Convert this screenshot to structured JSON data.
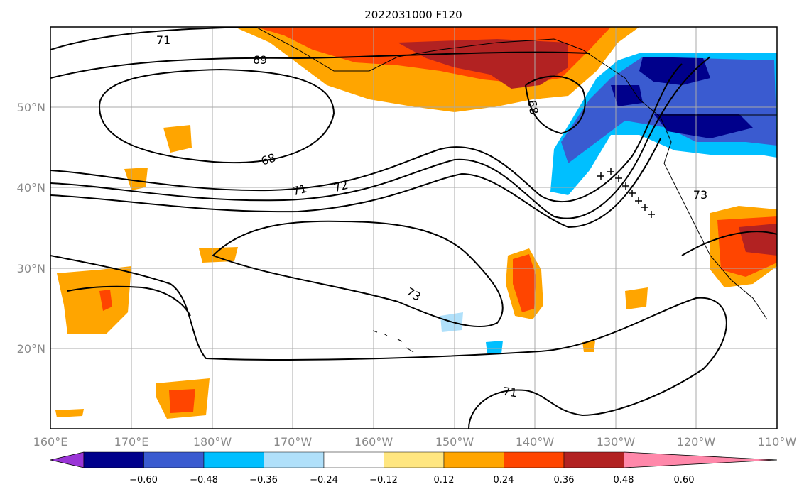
{
  "title": "2022031000 F120",
  "map": {
    "lon_ticks": [
      "160°E",
      "170°E",
      "180°W",
      "170°W",
      "160°W",
      "150°W",
      "140°W",
      "130°W",
      "120°W",
      "110°W"
    ],
    "lat_ticks": [
      "50°N",
      "40°N",
      "30°N",
      "20°N"
    ],
    "contour_labels": [
      "71",
      "69",
      "68",
      "68",
      "71",
      "72",
      "73",
      "73",
      "71"
    ],
    "gridlines": true
  },
  "colorbar": {
    "ticks": [
      "−0.60",
      "−0.48",
      "−0.36",
      "−0.24",
      "−0.12",
      "0.12",
      "0.24",
      "0.36",
      "0.48",
      "0.60"
    ],
    "colors": [
      "#9a35d6",
      "#00008b",
      "#3a5bd0",
      "#00bfff",
      "#b0e0fa",
      "#ffffff",
      "#ffe680",
      "#ffa500",
      "#ff4500",
      "#b22222",
      "#ff88aa"
    ]
  }
}
